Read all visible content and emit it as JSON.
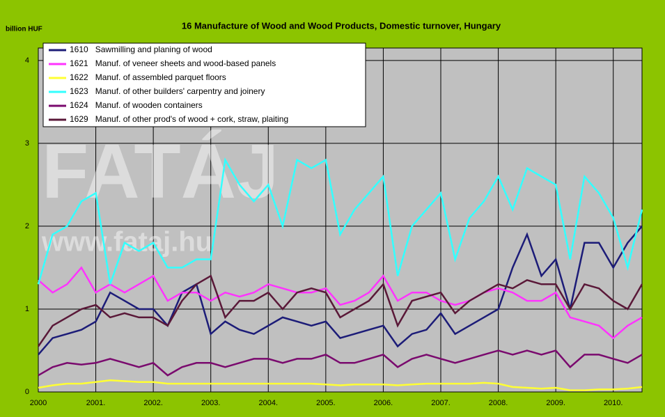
{
  "chart_data": {
    "type": "line",
    "title": "16 Manufacture of Wood and Wood Products, Domestic turnover, Hungary",
    "y_label": "billion HUF",
    "annotations": [
      "FATÁJ",
      "www.fataj.hu"
    ],
    "x": [
      2000,
      2000.25,
      2000.5,
      2000.75,
      2001,
      2001.25,
      2001.5,
      2001.75,
      2002,
      2002.25,
      2002.5,
      2002.75,
      2003,
      2003.25,
      2003.5,
      2003.75,
      2004,
      2004.25,
      2004.5,
      2004.75,
      2005,
      2005.25,
      2005.5,
      2005.75,
      2006,
      2006.25,
      2006.5,
      2006.75,
      2007,
      2007.25,
      2007.5,
      2007.75,
      2008,
      2008.25,
      2008.5,
      2008.75,
      2009,
      2009.25,
      2009.5,
      2009.75,
      2010,
      2010.25,
      2010.5
    ],
    "series": [
      {
        "name": "1610   Sawmilling and planing of wood",
        "color": "#1c1c78",
        "values": [
          0.45,
          0.65,
          0.7,
          0.75,
          0.85,
          1.2,
          1.1,
          1.0,
          1.0,
          0.8,
          1.2,
          1.3,
          0.7,
          0.85,
          0.75,
          0.7,
          0.8,
          0.9,
          0.85,
          0.8,
          0.85,
          0.65,
          0.7,
          0.75,
          0.8,
          0.55,
          0.7,
          0.75,
          0.95,
          0.7,
          0.8,
          0.9,
          1.0,
          1.5,
          1.9,
          1.4,
          1.6,
          1.0,
          1.8,
          1.8,
          1.5,
          1.8,
          2.0
        ]
      },
      {
        "name": "1621   Manuf. of veneer sheets and wood-based panels",
        "color": "#ff33ff",
        "values": [
          1.35,
          1.2,
          1.3,
          1.5,
          1.2,
          1.3,
          1.2,
          1.3,
          1.4,
          1.1,
          1.2,
          1.2,
          1.1,
          1.2,
          1.15,
          1.2,
          1.3,
          1.25,
          1.2,
          1.2,
          1.25,
          1.05,
          1.1,
          1.2,
          1.4,
          1.1,
          1.2,
          1.2,
          1.1,
          1.05,
          1.1,
          1.2,
          1.25,
          1.2,
          1.1,
          1.1,
          1.2,
          0.9,
          0.85,
          0.8,
          0.65,
          0.8,
          0.9
        ]
      },
      {
        "name": "1622   Manuf. of assembled parquet floors",
        "color": "#ffff33",
        "values": [
          0.05,
          0.08,
          0.1,
          0.1,
          0.12,
          0.14,
          0.13,
          0.12,
          0.12,
          0.1,
          0.1,
          0.1,
          0.1,
          0.1,
          0.1,
          0.1,
          0.1,
          0.1,
          0.1,
          0.1,
          0.09,
          0.08,
          0.09,
          0.09,
          0.09,
          0.08,
          0.09,
          0.1,
          0.1,
          0.1,
          0.1,
          0.11,
          0.1,
          0.06,
          0.05,
          0.04,
          0.05,
          0.02,
          0.02,
          0.03,
          0.03,
          0.04,
          0.06
        ]
      },
      {
        "name": "1623   Manuf. of other builders' carpentry and joinery",
        "color": "#33ffff",
        "values": [
          1.3,
          1.9,
          2.0,
          2.3,
          2.4,
          1.3,
          1.8,
          1.7,
          1.8,
          1.5,
          1.5,
          1.6,
          1.6,
          2.8,
          2.5,
          2.3,
          2.5,
          2.0,
          2.8,
          2.7,
          2.8,
          1.9,
          2.2,
          2.4,
          2.6,
          1.4,
          2.0,
          2.2,
          2.4,
          1.6,
          2.1,
          2.3,
          2.6,
          2.2,
          2.7,
          2.6,
          2.5,
          1.6,
          2.6,
          2.4,
          2.1,
          1.5,
          2.2
        ]
      },
      {
        "name": "1624   Manuf. of wooden containers",
        "color": "#7a0a6e",
        "values": [
          0.2,
          0.3,
          0.35,
          0.33,
          0.35,
          0.4,
          0.35,
          0.3,
          0.35,
          0.2,
          0.3,
          0.35,
          0.35,
          0.3,
          0.35,
          0.4,
          0.4,
          0.35,
          0.4,
          0.4,
          0.45,
          0.35,
          0.35,
          0.4,
          0.45,
          0.3,
          0.4,
          0.45,
          0.4,
          0.35,
          0.4,
          0.45,
          0.5,
          0.45,
          0.5,
          0.45,
          0.5,
          0.3,
          0.45,
          0.45,
          0.4,
          0.35,
          0.45
        ]
      },
      {
        "name": "1629   Manuf. of other prod's of wood + cork, straw, plaiting",
        "color": "#5a1838",
        "values": [
          0.55,
          0.8,
          0.9,
          1.0,
          1.05,
          0.9,
          0.95,
          0.9,
          0.9,
          0.8,
          1.1,
          1.3,
          1.4,
          0.9,
          1.1,
          1.1,
          1.2,
          1.0,
          1.2,
          1.25,
          1.2,
          0.9,
          1.0,
          1.1,
          1.3,
          0.8,
          1.1,
          1.15,
          1.2,
          0.95,
          1.1,
          1.2,
          1.3,
          1.25,
          1.35,
          1.3,
          1.3,
          1.0,
          1.3,
          1.25,
          1.1,
          1.0,
          1.3
        ]
      }
    ],
    "xlim": [
      2000,
      2010.5
    ],
    "xticks": [
      2000,
      {
        "value": 2001,
        "label": "2001."
      },
      {
        "value": 2002,
        "label": "2002."
      },
      {
        "value": 2003,
        "label": "2003."
      },
      {
        "value": 2004,
        "label": "2004."
      },
      {
        "value": 2005,
        "label": "2005."
      },
      {
        "value": 2006,
        "label": "2006."
      },
      {
        "value": 2007,
        "label": "2007."
      },
      {
        "value": 2008,
        "label": "2008."
      },
      {
        "value": 2009,
        "label": "2009."
      },
      {
        "value": 2010,
        "label": "2010."
      }
    ],
    "ylim": [
      0,
      4.15
    ],
    "yticks": [
      0,
      1,
      2,
      3,
      4
    ],
    "grid": true,
    "legend": "upper left"
  }
}
